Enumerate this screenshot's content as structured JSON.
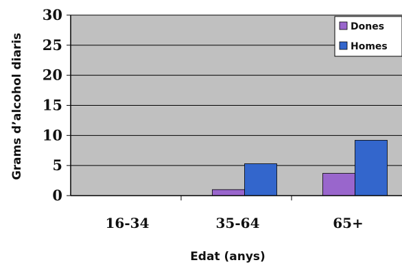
{
  "chart_data": {
    "type": "bar",
    "categories": [
      "16-34",
      "35-64",
      "65+"
    ],
    "series": [
      {
        "name": "Dones",
        "color": "#9966cc",
        "values": [
          0,
          1,
          3.7
        ]
      },
      {
        "name": "Homes",
        "color": "#3366cc",
        "values": [
          0,
          5.3,
          9.2
        ]
      }
    ],
    "xlabel": "Edat (anys)",
    "ylabel": "Grams d’alcohol diaris",
    "ylim": [
      0,
      30
    ],
    "yticks": [
      0,
      5,
      10,
      15,
      20,
      25,
      30
    ],
    "grid": true,
    "plot_background": "#c0c0c0",
    "legend_position": "top-right"
  }
}
